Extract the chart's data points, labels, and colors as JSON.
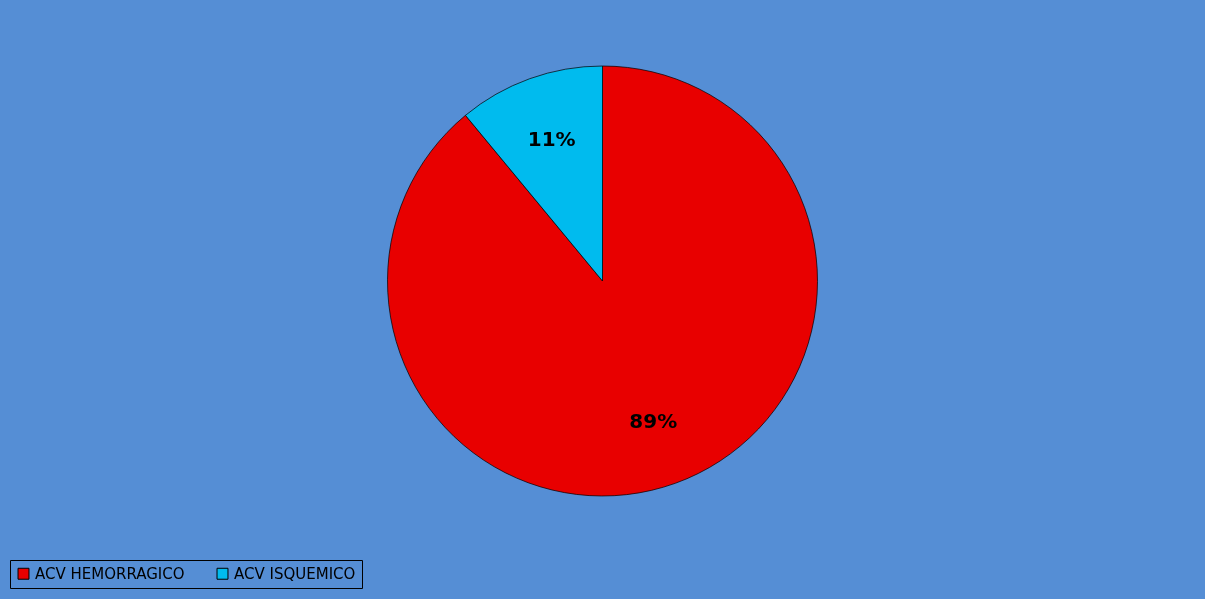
{
  "chart_data": {
    "type": "pie",
    "categories": [
      "ACV HEMORRAGICO",
      "ACV ISQUEMICO"
    ],
    "values": [
      89,
      11
    ],
    "colors": [
      "#e80000",
      "#00bbee"
    ],
    "value_labels": [
      "89%",
      "11%"
    ],
    "legend": "bottom"
  }
}
